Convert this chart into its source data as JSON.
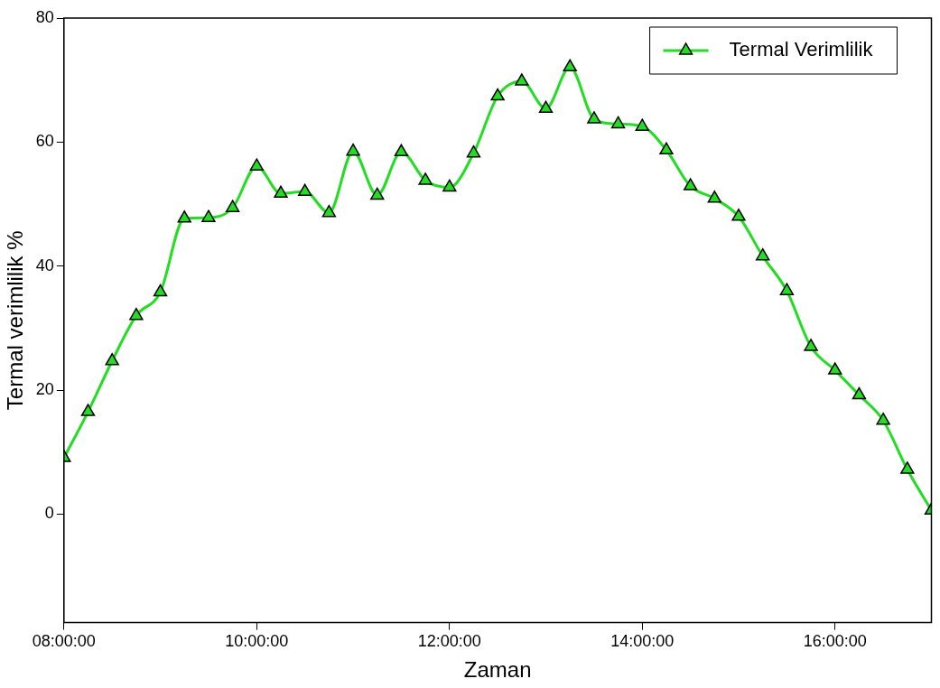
{
  "chart_data": {
    "type": "line",
    "xlabel": "Zaman",
    "ylabel": "Termal verimlilik %",
    "x": [
      8,
      8.25,
      8.5,
      8.75,
      9,
      9.25,
      9.5,
      9.75,
      10,
      10.25,
      10.5,
      10.75,
      11,
      11.25,
      11.5,
      11.75,
      12,
      12.25,
      12.5,
      12.75,
      13,
      13.25,
      13.5,
      13.75,
      14,
      14.25,
      14.5,
      14.75,
      15,
      15.25,
      15.5,
      15.75,
      16,
      16.25,
      16.5,
      16.75,
      17
    ],
    "series": [
      {
        "name": "Termal Verimlilik",
        "color": "#22dd22",
        "values": [
          9.1,
          16.5,
          24.7,
          32,
          35.8,
          47.7,
          47.8,
          49.4,
          56.1,
          51.7,
          52,
          48.6,
          58.5,
          51.4,
          58.4,
          53.8,
          52.7,
          58.2,
          67.4,
          69.8,
          65.4,
          72.1,
          63.7,
          62.9,
          62.5,
          58.7,
          52.9,
          50.9,
          48,
          41.6,
          36,
          27,
          23.2,
          19.2,
          15.1,
          7.2,
          0.6
        ]
      }
    ],
    "xlim": [
      8,
      17
    ],
    "xticks": [
      {
        "value": 8,
        "label": "08:00:00"
      },
      {
        "value": 10,
        "label": "10:00:00"
      },
      {
        "value": 12,
        "label": "12:00:00"
      },
      {
        "value": 14,
        "label": "14:00:00"
      },
      {
        "value": 16,
        "label": "16:00:00"
      }
    ],
    "ylim": [
      -17.5,
      80
    ],
    "yticks": [
      0,
      20,
      40,
      60,
      80
    ],
    "grid": false,
    "legend": "top right",
    "marker": "triangle",
    "line_style": "solid"
  }
}
